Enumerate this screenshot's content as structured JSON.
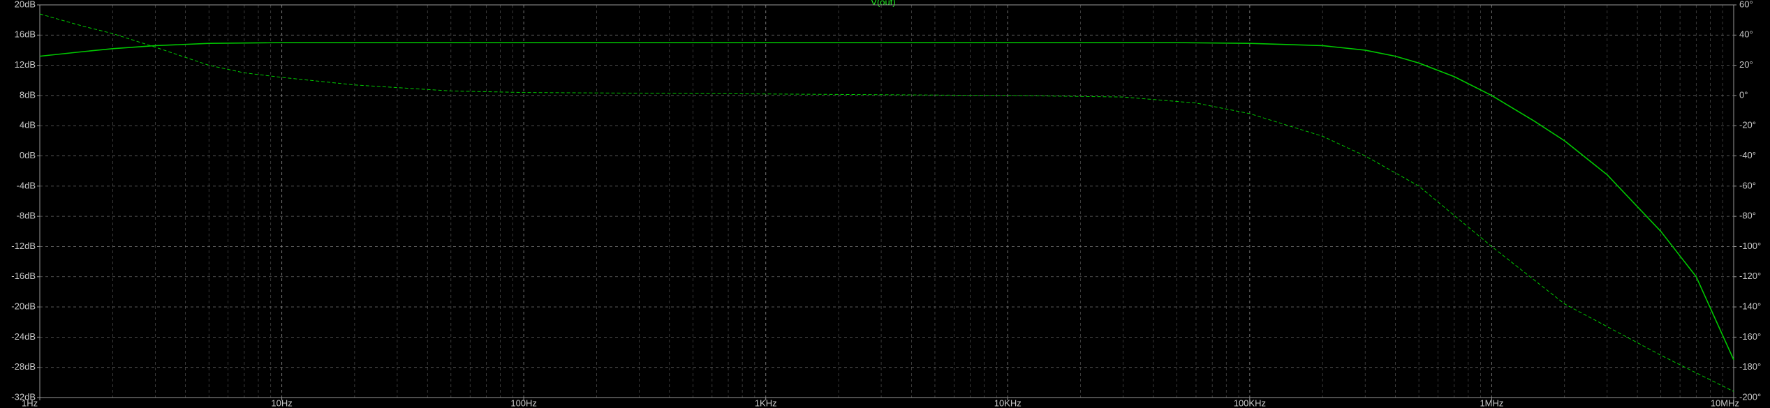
{
  "chart_data": {
    "type": "line",
    "title": "V(out)",
    "x_scale": "log",
    "xlim": [
      1,
      10000000
    ],
    "x_ticks": [
      {
        "value": 1,
        "label": "1Hz"
      },
      {
        "value": 10,
        "label": "10Hz"
      },
      {
        "value": 100,
        "label": "100Hz"
      },
      {
        "value": 1000,
        "label": "1KHz"
      },
      {
        "value": 10000,
        "label": "10KHz"
      },
      {
        "value": 100000,
        "label": "100KHz"
      },
      {
        "value": 1000000,
        "label": "1MHz"
      },
      {
        "value": 10000000,
        "label": "10MHz"
      }
    ],
    "ylim_left": [
      -32,
      20
    ],
    "y_ticks_left": [
      {
        "value": 20,
        "label": "20dB"
      },
      {
        "value": 16,
        "label": "16dB"
      },
      {
        "value": 12,
        "label": "12dB"
      },
      {
        "value": 8,
        "label": "8dB"
      },
      {
        "value": 4,
        "label": "4dB"
      },
      {
        "value": 0,
        "label": "0dB"
      },
      {
        "value": -4,
        "label": "-4dB"
      },
      {
        "value": -8,
        "label": "-8dB"
      },
      {
        "value": -12,
        "label": "-12dB"
      },
      {
        "value": -16,
        "label": "-16dB"
      },
      {
        "value": -20,
        "label": "-20dB"
      },
      {
        "value": -24,
        "label": "-24dB"
      },
      {
        "value": -28,
        "label": "-28dB"
      },
      {
        "value": -32,
        "label": "-32dB"
      }
    ],
    "ylim_right": [
      -200,
      60
    ],
    "y_ticks_right": [
      {
        "value": 60,
        "label": "60°"
      },
      {
        "value": 40,
        "label": "40°"
      },
      {
        "value": 20,
        "label": "20°"
      },
      {
        "value": 0,
        "label": "0°"
      },
      {
        "value": -20,
        "label": "-20°"
      },
      {
        "value": -40,
        "label": "-40°"
      },
      {
        "value": -60,
        "label": "-60°"
      },
      {
        "value": -80,
        "label": "-80°"
      },
      {
        "value": -100,
        "label": "-100°"
      },
      {
        "value": -120,
        "label": "-120°"
      },
      {
        "value": -140,
        "label": "-140°"
      },
      {
        "value": -160,
        "label": "-160°"
      },
      {
        "value": -180,
        "label": "-180°"
      },
      {
        "value": -200,
        "label": "-200°"
      }
    ],
    "grid": true,
    "colors": {
      "background": "#000000",
      "trace": "#00c800",
      "grid": "#8a8a8a",
      "axis": "#9a9a9a",
      "tick_text": "#c8c8c8",
      "title": "#22ee22"
    },
    "series": [
      {
        "axis": "left",
        "style": "solid",
        "points": [
          [
            1,
            13.2
          ],
          [
            1.5,
            13.8
          ],
          [
            2,
            14.2
          ],
          [
            3,
            14.6
          ],
          [
            5,
            14.9
          ],
          [
            10,
            15.0
          ],
          [
            100,
            15.0
          ],
          [
            1000,
            15.0
          ],
          [
            10000,
            15.0
          ],
          [
            50000,
            15.0
          ],
          [
            100000,
            14.9
          ],
          [
            200000,
            14.6
          ],
          [
            300000,
            14.0
          ],
          [
            400000,
            13.2
          ],
          [
            500000,
            12.3
          ],
          [
            700000,
            10.5
          ],
          [
            1000000,
            8.0
          ],
          [
            1500000,
            4.6
          ],
          [
            2000000,
            2.0
          ],
          [
            3000000,
            -2.5
          ],
          [
            5000000,
            -10.0
          ],
          [
            7000000,
            -16.0
          ],
          [
            10000000,
            -27.0
          ]
        ]
      },
      {
        "axis": "right",
        "style": "dashed",
        "points": [
          [
            1,
            54
          ],
          [
            1.5,
            46
          ],
          [
            2,
            41
          ],
          [
            3,
            32
          ],
          [
            5,
            20
          ],
          [
            7,
            15
          ],
          [
            10,
            12
          ],
          [
            20,
            7
          ],
          [
            50,
            3
          ],
          [
            100,
            2
          ],
          [
            1000,
            1
          ],
          [
            10000,
            0
          ],
          [
            30000,
            -1
          ],
          [
            60000,
            -5
          ],
          [
            100000,
            -12
          ],
          [
            200000,
            -27
          ],
          [
            300000,
            -40
          ],
          [
            500000,
            -60
          ],
          [
            1000000,
            -100
          ],
          [
            2000000,
            -138
          ],
          [
            5000000,
            -172
          ],
          [
            10000000,
            -196
          ]
        ]
      }
    ]
  }
}
